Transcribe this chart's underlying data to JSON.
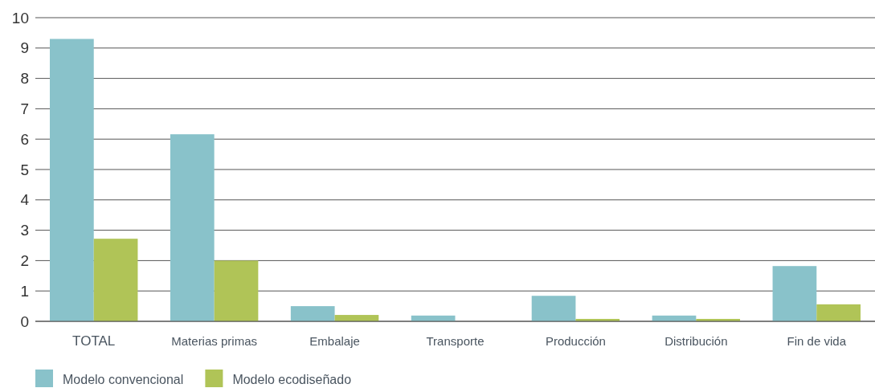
{
  "chart_data": {
    "type": "bar",
    "categories": [
      "TOTAL",
      "Materias primas",
      "Embalaje",
      "Transporte",
      "Producción",
      "Distribución",
      "Fin de vida"
    ],
    "series": [
      {
        "name": "Modelo convencional",
        "color": "#89c2ca",
        "values": [
          9.3,
          6.16,
          0.5,
          0.19,
          0.84,
          0.19,
          1.82
        ]
      },
      {
        "name": "Modelo ecodiseñado",
        "color": "#b0c457",
        "values": [
          2.72,
          2.0,
          0.21,
          0,
          0.08,
          0.08,
          0.56
        ]
      }
    ],
    "ylim": [
      0,
      10
    ],
    "yticks": [
      0,
      1,
      2,
      3,
      4,
      5,
      6,
      7,
      8,
      9,
      10
    ],
    "grid": "y",
    "legend": "bottom left"
  }
}
